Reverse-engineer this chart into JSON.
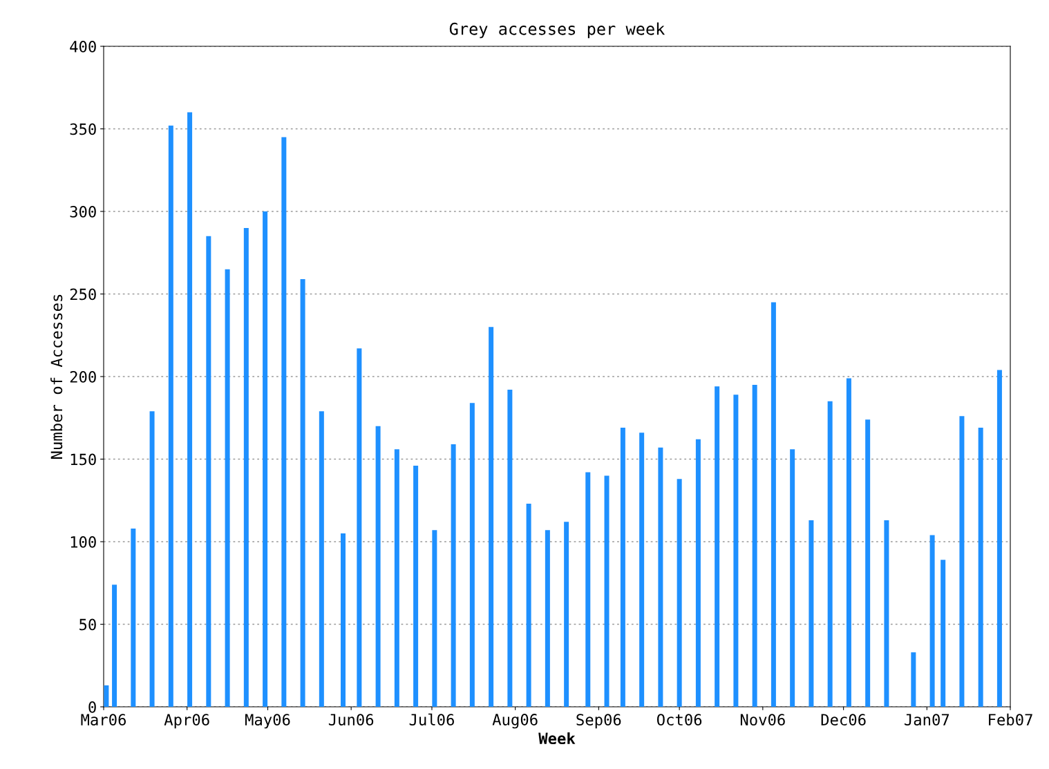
{
  "chart_data": {
    "type": "bar",
    "title": "Grey accesses per week",
    "xlabel": "Week",
    "ylabel": "Number of Accesses",
    "x": [
      "2006-03-02",
      "2006-03-05",
      "2006-03-12",
      "2006-03-19",
      "2006-03-26",
      "2006-04-02",
      "2006-04-09",
      "2006-04-16",
      "2006-04-23",
      "2006-04-30",
      "2006-05-07",
      "2006-05-14",
      "2006-05-21",
      "2006-05-29",
      "2006-06-04",
      "2006-06-11",
      "2006-06-18",
      "2006-06-25",
      "2006-07-02",
      "2006-07-09",
      "2006-07-16",
      "2006-07-23",
      "2006-07-30",
      "2006-08-06",
      "2006-08-13",
      "2006-08-20",
      "2006-08-28",
      "2006-09-04",
      "2006-09-10",
      "2006-09-17",
      "2006-09-24",
      "2006-10-01",
      "2006-10-08",
      "2006-10-15",
      "2006-10-22",
      "2006-10-29",
      "2006-11-05",
      "2006-11-12",
      "2006-11-19",
      "2006-11-26",
      "2006-12-03",
      "2006-12-10",
      "2006-12-17",
      "2006-12-27",
      "2007-01-03",
      "2007-01-07",
      "2007-01-14",
      "2007-01-21",
      "2007-01-28"
    ],
    "values": [
      13,
      74,
      108,
      179,
      352,
      360,
      285,
      265,
      290,
      300,
      345,
      259,
      179,
      105,
      217,
      170,
      156,
      146,
      107,
      159,
      184,
      230,
      192,
      123,
      107,
      112,
      142,
      140,
      169,
      166,
      157,
      138,
      162,
      194,
      189,
      195,
      245,
      156,
      113,
      185,
      199,
      174,
      113,
      33,
      104,
      89,
      176,
      169,
      204
    ],
    "color": "#1e90ff",
    "xlim": [
      "2006-03-01",
      "2007-02-01"
    ],
    "xticks": [
      {
        "value": "2006-03-01",
        "label": "Mar06"
      },
      {
        "value": "2006-04-01",
        "label": "Apr06"
      },
      {
        "value": "2006-05-01",
        "label": "May06"
      },
      {
        "value": "2006-06-01",
        "label": "Jun06"
      },
      {
        "value": "2006-07-01",
        "label": "Jul06"
      },
      {
        "value": "2006-08-01",
        "label": "Aug06"
      },
      {
        "value": "2006-09-01",
        "label": "Sep06"
      },
      {
        "value": "2006-10-01",
        "label": "Oct06"
      },
      {
        "value": "2006-11-01",
        "label": "Nov06"
      },
      {
        "value": "2006-12-01",
        "label": "Dec06"
      },
      {
        "value": "2007-01-01",
        "label": "Jan07"
      },
      {
        "value": "2007-02-01",
        "label": "Feb07"
      }
    ],
    "ylim": [
      0,
      400
    ],
    "yticks": [
      0,
      50,
      100,
      150,
      200,
      250,
      300,
      350,
      400
    ],
    "grid": "y",
    "legend": false
  }
}
